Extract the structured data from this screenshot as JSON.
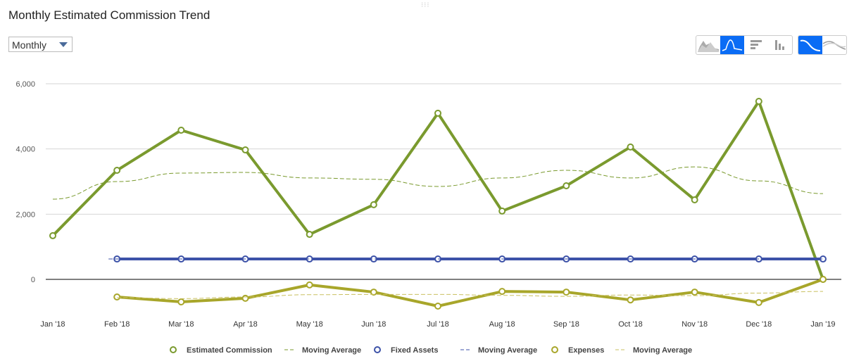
{
  "title": "Monthly Estimated Commission Trend",
  "period_select": {
    "value": "Monthly"
  },
  "toolbar": {
    "chart_types": [
      "area-chart-icon",
      "line-chart-icon",
      "horizontal-bar-icon",
      "vertical-bar-icon"
    ],
    "active_type": 1,
    "curve_types": [
      "smooth-curve-icon",
      "multi-curve-icon"
    ],
    "active_curve": 0,
    "accent": "#0a6cf5"
  },
  "chart_data": {
    "type": "line",
    "categories": [
      "Jan '18",
      "Feb '18",
      "Mar '18",
      "Apr '18",
      "May '18",
      "Jun '18",
      "Jul '18",
      "Aug '18",
      "Sep '18",
      "Oct '18",
      "Nov '18",
      "Dec '18",
      "Jan '19"
    ],
    "yticks": [
      "6,000",
      "4,000",
      "2,000",
      "0"
    ],
    "ylim": [
      -1000,
      6000
    ],
    "grid": true,
    "legend_position": "bottom",
    "series": [
      {
        "name": "Estimated Commission",
        "color": "#7a9a2e",
        "values": [
          1340,
          3345,
          4575,
          3970,
          1380,
          2290,
          5095,
          2095,
          2870,
          4060,
          2440,
          5460,
          0
        ]
      },
      {
        "name": "Moving Average",
        "color": "#7a9a2e",
        "dashed": true,
        "values": [
          2460,
          3000,
          3260,
          3280,
          3110,
          3070,
          2850,
          3110,
          3345,
          3110,
          3450,
          3020,
          2630
        ]
      },
      {
        "name": "Fixed Assets",
        "color": "#3d52a8",
        "values": [
          null,
          625,
          625,
          625,
          625,
          625,
          625,
          625,
          625,
          625,
          625,
          625,
          625
        ]
      },
      {
        "name": "Moving Average",
        "color": "#3d52a8",
        "dashed": true,
        "values": [
          null,
          625,
          625,
          625,
          625,
          625,
          625,
          625,
          625,
          625,
          625,
          625,
          625
        ]
      },
      {
        "name": "Expenses",
        "color": "#a8a62a",
        "values": [
          null,
          -540,
          -690,
          -580,
          -170,
          -390,
          -820,
          -370,
          -390,
          -630,
          -390,
          -710,
          0
        ]
      },
      {
        "name": "Moving Average",
        "color": "#c9c060",
        "dashed": true,
        "values": [
          null,
          -560,
          -590,
          -540,
          -470,
          -460,
          -460,
          -490,
          -520,
          -480,
          -500,
          -420,
          -370
        ]
      }
    ]
  }
}
